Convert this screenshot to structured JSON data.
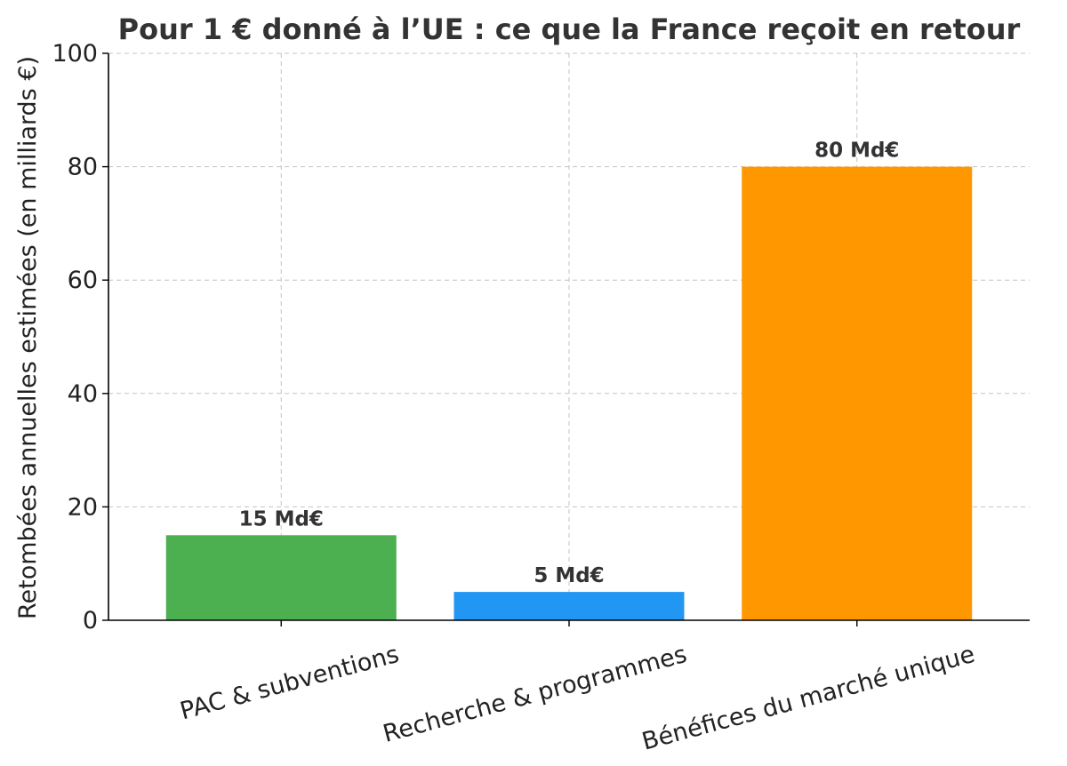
{
  "chart_data": {
    "type": "bar",
    "title": "Pour 1 € donné à l’UE : ce que la France reçoit en retour",
    "xlabel": "",
    "ylabel": "Retombées annuelles estimées (en milliards €)",
    "categories": [
      "PAC & subventions",
      "Recherche & programmes",
      "Bénéfices du marché unique"
    ],
    "values": [
      15,
      5,
      80
    ],
    "data_labels": [
      "15 Md€",
      "5 Md€",
      "80 Md€"
    ],
    "colors": [
      "#4caf50",
      "#2196f3",
      "#ff9800"
    ],
    "ylim": [
      0,
      100
    ],
    "yticks": [
      0,
      20,
      40,
      60,
      80,
      100
    ],
    "grid": true,
    "legend": "none"
  }
}
